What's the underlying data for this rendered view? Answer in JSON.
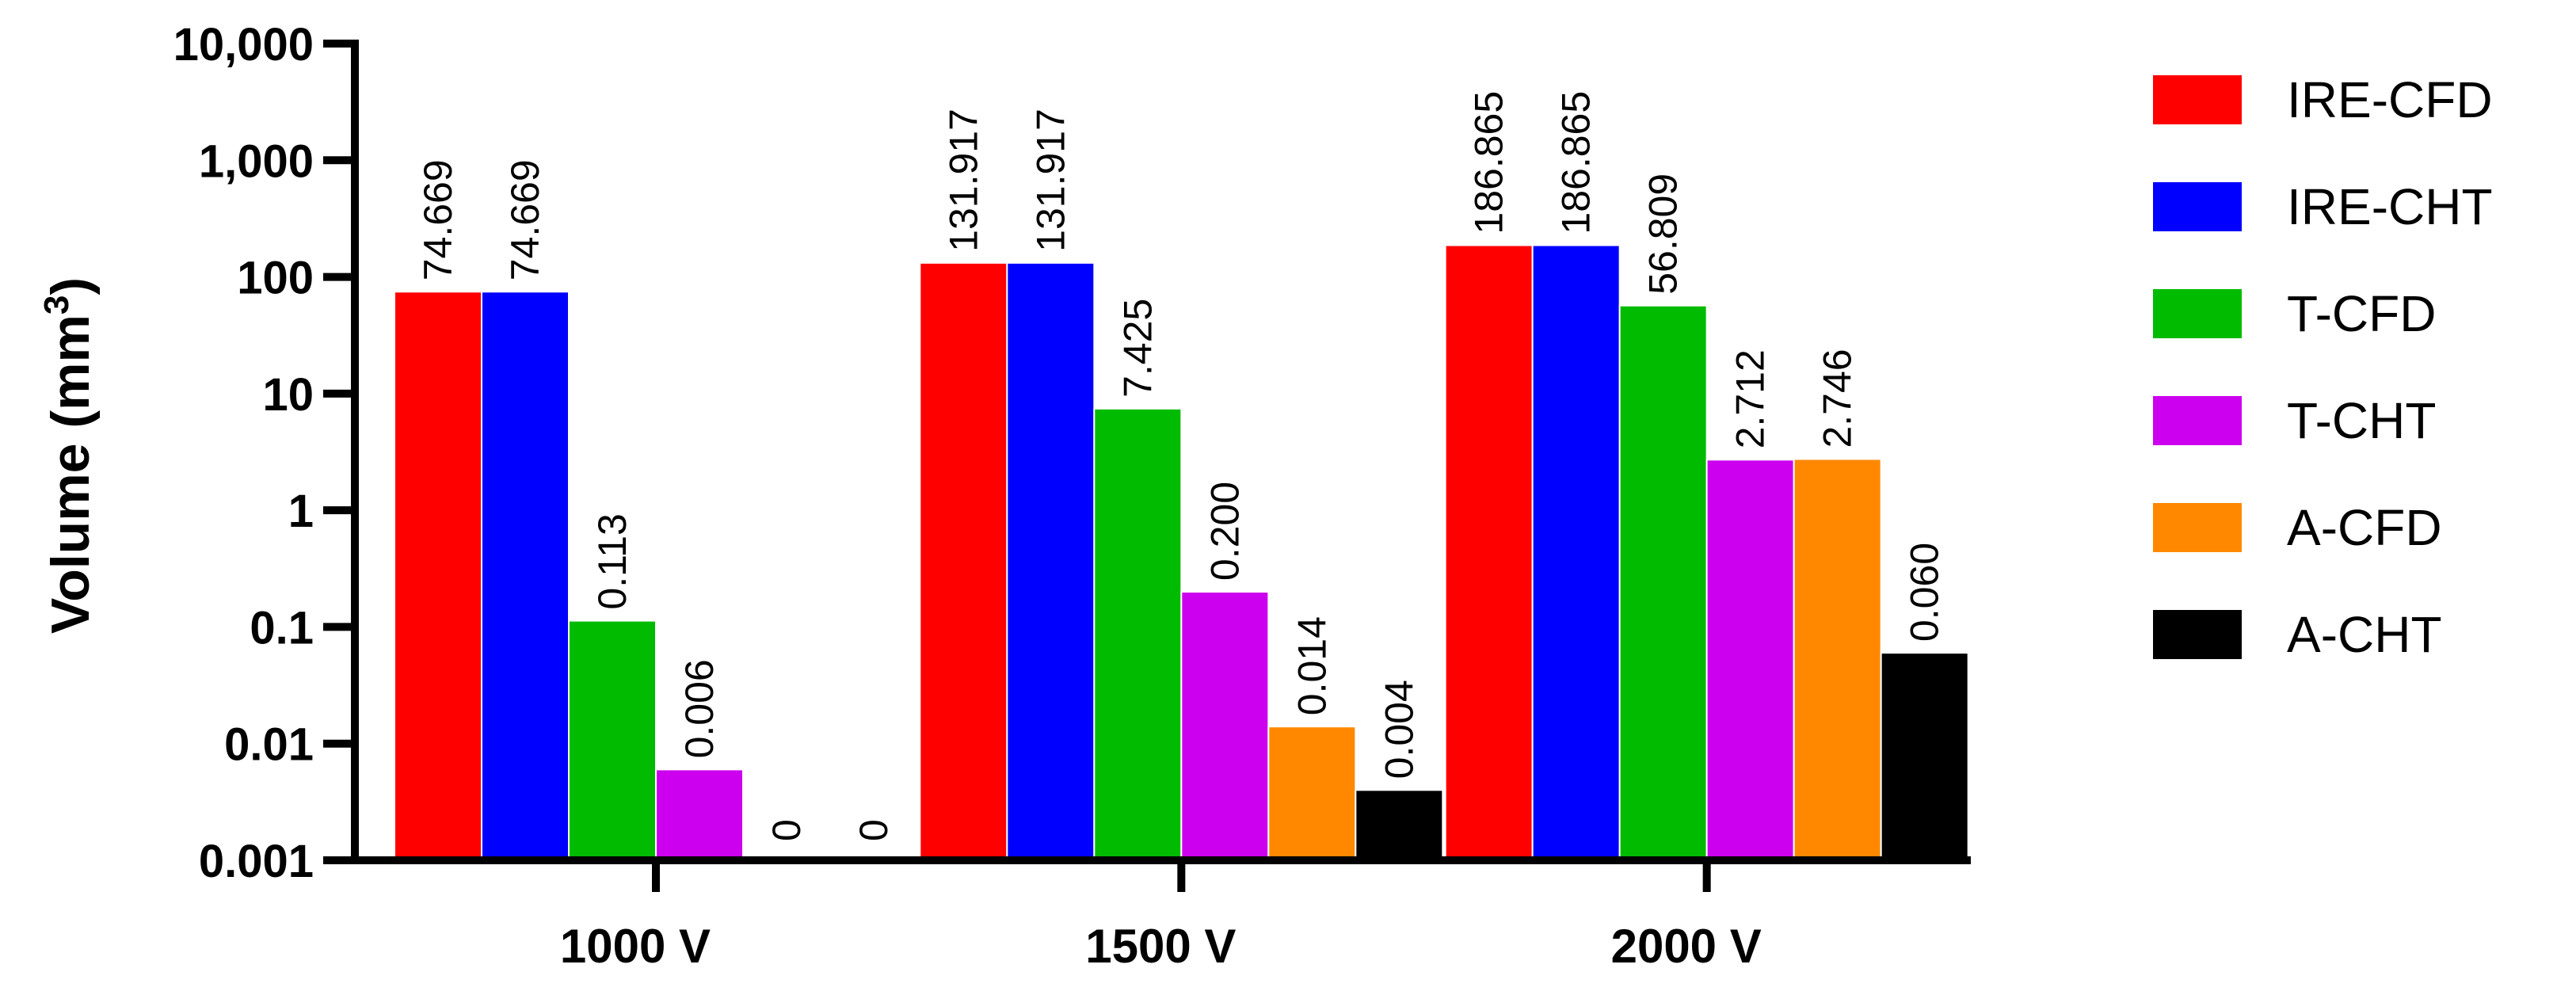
{
  "chart_data": {
    "type": "bar",
    "scale": "log",
    "title": "",
    "xlabel": "",
    "ylabel": "Volume (mm",
    "ylabel_superscript": "3",
    "ylabel_suffix": ")",
    "ylim": [
      0.001,
      10000
    ],
    "yticks": [
      {
        "value": 10000,
        "label": "10,000"
      },
      {
        "value": 1000,
        "label": "1,000"
      },
      {
        "value": 100,
        "label": "100"
      },
      {
        "value": 10,
        "label": "10"
      },
      {
        "value": 1,
        "label": "1"
      },
      {
        "value": 0.1,
        "label": "0.1"
      },
      {
        "value": 0.01,
        "label": "0.01"
      },
      {
        "value": 0.001,
        "label": "0.001"
      }
    ],
    "categories": [
      "1000 V",
      "1500 V",
      "2000 V"
    ],
    "legend_position": "right",
    "series": [
      {
        "name": "IRE-CFD",
        "color": "#ff0000",
        "values": [
          74.669,
          131.917,
          186.865
        ],
        "labels": [
          "74.669",
          "131.917",
          "186.865"
        ]
      },
      {
        "name": "IRE-CHT",
        "color": "#0000ff",
        "values": [
          74.669,
          131.917,
          186.865
        ],
        "labels": [
          "74.669",
          "131.917",
          "186.865"
        ]
      },
      {
        "name": "T-CFD",
        "color": "#00bb00",
        "values": [
          0.113,
          7.425,
          56.809
        ],
        "labels": [
          "0.113",
          "7.425",
          "56.809"
        ]
      },
      {
        "name": "T-CHT",
        "color": "#cc00ee",
        "values": [
          0.006,
          0.2,
          2.712
        ],
        "labels": [
          "0.006",
          "0.200",
          "2.712"
        ]
      },
      {
        "name": "A-CFD",
        "color": "#ff8800",
        "values": [
          0,
          0.014,
          2.746
        ],
        "labels": [
          "0",
          "0.014",
          "2.746"
        ]
      },
      {
        "name": "A-CHT",
        "color": "#000000",
        "values": [
          0,
          0.004,
          0.06
        ],
        "labels": [
          "0",
          "0.004",
          "0.060"
        ]
      }
    ]
  }
}
